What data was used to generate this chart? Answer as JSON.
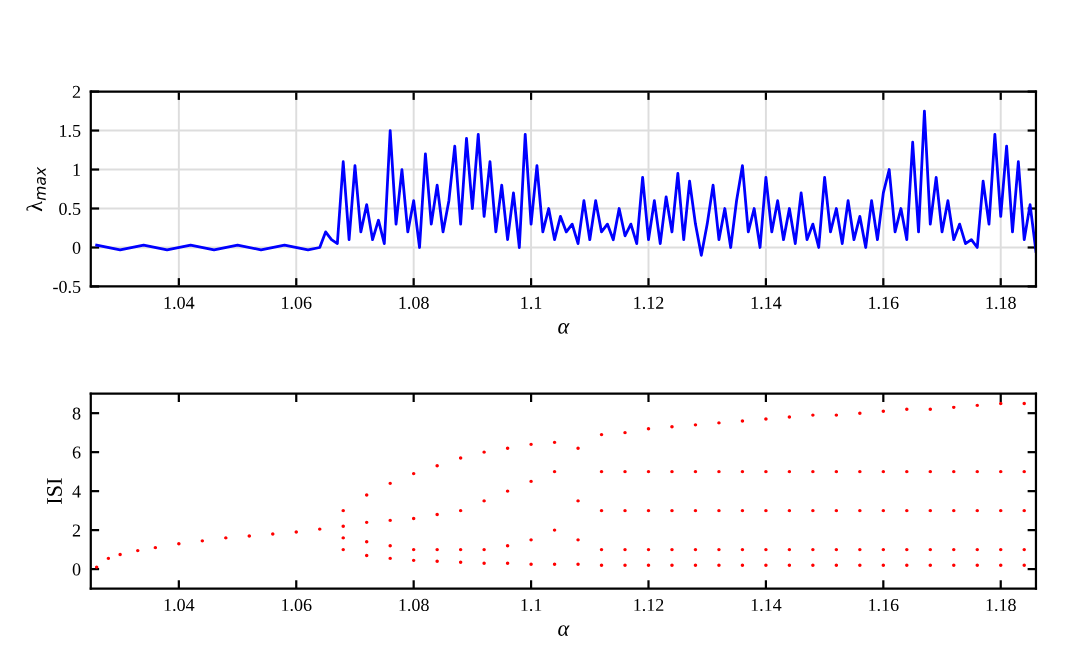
{
  "chart_data": [
    {
      "type": "line",
      "xlabel": "α",
      "ylabel": "λ$_{max}$",
      "xlim": [
        1.025,
        1.186
      ],
      "ylim": [
        -0.5,
        2
      ],
      "xticks": [
        1.04,
        1.06,
        1.08,
        1.1,
        1.12,
        1.14,
        1.16,
        1.18
      ],
      "yticks": [
        -0.5,
        0,
        0.5,
        1,
        1.5,
        2
      ],
      "grid": true,
      "marker": "none",
      "line_style": "solid",
      "series": [
        {
          "color": "#0000ff",
          "x": [
            1.026,
            1.03,
            1.034,
            1.038,
            1.042,
            1.046,
            1.05,
            1.054,
            1.058,
            1.062,
            1.064,
            1.065,
            1.066,
            1.067,
            1.068,
            1.069,
            1.07,
            1.071,
            1.072,
            1.073,
            1.074,
            1.075,
            1.076,
            1.077,
            1.078,
            1.079,
            1.08,
            1.081,
            1.082,
            1.083,
            1.084,
            1.085,
            1.086,
            1.087,
            1.088,
            1.089,
            1.09,
            1.091,
            1.092,
            1.093,
            1.094,
            1.095,
            1.096,
            1.097,
            1.098,
            1.099,
            1.1,
            1.101,
            1.102,
            1.103,
            1.104,
            1.105,
            1.106,
            1.107,
            1.108,
            1.109,
            1.11,
            1.111,
            1.112,
            1.113,
            1.114,
            1.115,
            1.116,
            1.117,
            1.118,
            1.119,
            1.12,
            1.121,
            1.122,
            1.123,
            1.124,
            1.125,
            1.126,
            1.127,
            1.128,
            1.129,
            1.13,
            1.131,
            1.132,
            1.133,
            1.134,
            1.135,
            1.136,
            1.137,
            1.138,
            1.139,
            1.14,
            1.141,
            1.142,
            1.143,
            1.144,
            1.145,
            1.146,
            1.147,
            1.148,
            1.149,
            1.15,
            1.151,
            1.152,
            1.153,
            1.154,
            1.155,
            1.156,
            1.157,
            1.158,
            1.159,
            1.16,
            1.161,
            1.162,
            1.163,
            1.164,
            1.165,
            1.166,
            1.167,
            1.168,
            1.169,
            1.17,
            1.171,
            1.172,
            1.173,
            1.174,
            1.175,
            1.176,
            1.177,
            1.178,
            1.179,
            1.18,
            1.181,
            1.182,
            1.183,
            1.184,
            1.185,
            1.186
          ],
          "values": [
            0.03,
            -0.03,
            0.03,
            -0.03,
            0.03,
            -0.03,
            0.03,
            -0.03,
            0.03,
            -0.03,
            0.0,
            0.2,
            0.1,
            0.05,
            1.1,
            0.1,
            1.05,
            0.2,
            0.55,
            0.1,
            0.35,
            0.05,
            1.5,
            0.3,
            1.0,
            0.2,
            0.6,
            0.0,
            1.2,
            0.3,
            0.8,
            0.2,
            0.6,
            1.3,
            0.3,
            1.4,
            0.5,
            1.45,
            0.4,
            1.1,
            0.2,
            0.8,
            0.1,
            0.7,
            0.0,
            1.45,
            0.3,
            1.05,
            0.2,
            0.5,
            0.1,
            0.4,
            0.2,
            0.3,
            0.05,
            0.6,
            0.1,
            0.6,
            0.2,
            0.3,
            0.1,
            0.5,
            0.15,
            0.3,
            0.05,
            0.9,
            0.1,
            0.6,
            0.05,
            0.65,
            0.2,
            0.95,
            0.1,
            0.85,
            0.3,
            -0.1,
            0.3,
            0.8,
            0.1,
            0.5,
            0.0,
            0.6,
            1.05,
            0.2,
            0.5,
            0.0,
            0.9,
            0.2,
            0.6,
            0.1,
            0.5,
            0.05,
            0.7,
            0.1,
            0.3,
            0.0,
            0.9,
            0.2,
            0.5,
            0.05,
            0.6,
            0.1,
            0.4,
            0.0,
            0.6,
            0.1,
            0.7,
            1.0,
            0.2,
            0.5,
            0.1,
            1.35,
            0.2,
            1.75,
            0.3,
            0.9,
            0.2,
            0.6,
            0.1,
            0.3,
            0.05,
            0.1,
            0.0,
            0.85,
            0.3,
            1.45,
            0.4,
            1.3,
            0.2,
            1.1,
            0.1,
            0.55,
            -0.05
          ]
        }
      ]
    },
    {
      "type": "scatter",
      "xlabel": "α",
      "ylabel": "ISI",
      "xlim": [
        1.025,
        1.186
      ],
      "ylim": [
        -1,
        9
      ],
      "xticks": [
        1.04,
        1.06,
        1.08,
        1.1,
        1.12,
        1.14,
        1.16,
        1.18
      ],
      "yticks": [
        0,
        2,
        4,
        6,
        8
      ],
      "grid": false,
      "marker": "circle",
      "series": [
        {
          "color": "#ff0000",
          "x": [
            1.026,
            1.028,
            1.03,
            1.033,
            1.036,
            1.04,
            1.044,
            1.048,
            1.052,
            1.056,
            1.06,
            1.064,
            1.068,
            1.068,
            1.068,
            1.068,
            1.072,
            1.072,
            1.072,
            1.072,
            1.076,
            1.076,
            1.076,
            1.076,
            1.08,
            1.08,
            1.08,
            1.08,
            1.084,
            1.084,
            1.084,
            1.084,
            1.088,
            1.088,
            1.088,
            1.088,
            1.092,
            1.092,
            1.092,
            1.092,
            1.096,
            1.096,
            1.096,
            1.096,
            1.1,
            1.1,
            1.1,
            1.1,
            1.104,
            1.104,
            1.104,
            1.104,
            1.108,
            1.108,
            1.108,
            1.108,
            1.112,
            1.112,
            1.112,
            1.112,
            1.112,
            1.116,
            1.116,
            1.116,
            1.116,
            1.116,
            1.12,
            1.12,
            1.12,
            1.12,
            1.12,
            1.124,
            1.124,
            1.124,
            1.124,
            1.124,
            1.128,
            1.128,
            1.128,
            1.128,
            1.128,
            1.132,
            1.132,
            1.132,
            1.132,
            1.132,
            1.136,
            1.136,
            1.136,
            1.136,
            1.136,
            1.14,
            1.14,
            1.14,
            1.14,
            1.14,
            1.144,
            1.144,
            1.144,
            1.144,
            1.144,
            1.148,
            1.148,
            1.148,
            1.148,
            1.148,
            1.152,
            1.152,
            1.152,
            1.152,
            1.152,
            1.156,
            1.156,
            1.156,
            1.156,
            1.156,
            1.16,
            1.16,
            1.16,
            1.16,
            1.16,
            1.164,
            1.164,
            1.164,
            1.164,
            1.164,
            1.168,
            1.168,
            1.168,
            1.168,
            1.168,
            1.172,
            1.172,
            1.172,
            1.172,
            1.172,
            1.176,
            1.176,
            1.176,
            1.176,
            1.176,
            1.18,
            1.18,
            1.18,
            1.18,
            1.18,
            1.184,
            1.184,
            1.184,
            1.184,
            1.184
          ],
          "values": [
            0.1,
            0.55,
            0.75,
            0.95,
            1.1,
            1.3,
            1.45,
            1.6,
            1.7,
            1.8,
            1.9,
            2.05,
            1.0,
            1.6,
            2.2,
            3.0,
            0.7,
            1.4,
            2.4,
            3.8,
            0.55,
            1.2,
            2.5,
            4.4,
            0.45,
            1.0,
            2.6,
            4.9,
            0.4,
            1.0,
            2.8,
            5.3,
            0.35,
            1.0,
            3.0,
            5.7,
            0.3,
            1.0,
            3.5,
            6.0,
            0.3,
            1.2,
            4.0,
            6.2,
            0.25,
            1.5,
            4.5,
            6.4,
            0.25,
            2.0,
            5.0,
            6.5,
            0.25,
            1.5,
            3.5,
            6.2,
            0.2,
            1.0,
            3.0,
            5.0,
            6.9,
            0.2,
            1.0,
            3.0,
            5.0,
            7.0,
            0.2,
            1.0,
            3.0,
            5.0,
            7.2,
            0.2,
            1.0,
            3.0,
            5.0,
            7.3,
            0.2,
            1.0,
            3.0,
            5.0,
            7.4,
            0.2,
            1.0,
            3.0,
            5.0,
            7.5,
            0.2,
            1.0,
            3.0,
            5.0,
            7.6,
            0.2,
            1.0,
            3.0,
            5.0,
            7.7,
            0.2,
            1.0,
            3.0,
            5.0,
            7.8,
            0.2,
            1.0,
            3.0,
            5.0,
            7.9,
            0.2,
            1.0,
            3.0,
            5.0,
            7.9,
            0.2,
            1.0,
            3.0,
            5.0,
            8.0,
            0.2,
            1.0,
            3.0,
            5.0,
            8.1,
            0.2,
            1.0,
            3.0,
            5.0,
            8.2,
            0.2,
            1.0,
            3.0,
            5.0,
            8.2,
            0.2,
            1.0,
            3.0,
            5.0,
            8.3,
            0.2,
            1.0,
            3.0,
            5.0,
            8.4,
            0.2,
            1.0,
            3.0,
            5.0,
            8.5,
            0.2,
            1.0,
            3.0,
            5.0,
            8.5
          ]
        }
      ]
    }
  ]
}
